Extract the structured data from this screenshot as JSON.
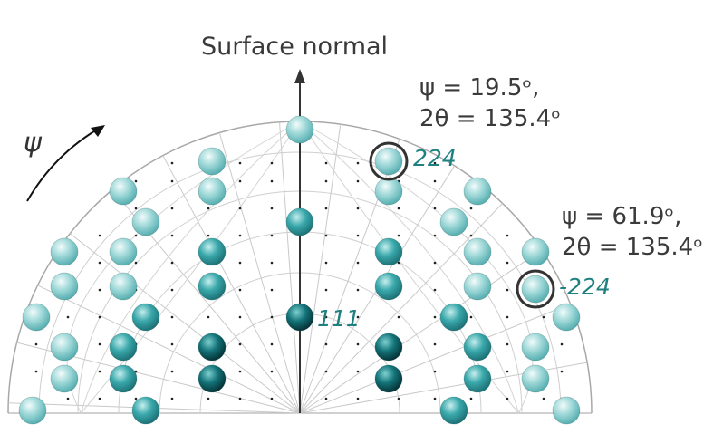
{
  "diagram": {
    "title": "Surface normal",
    "psi_symbol": "ψ",
    "annotations": [
      {
        "line1": "ψ = 19.5ᵒ,",
        "line2": "2θ = 135.4ᵒ"
      },
      {
        "line1": "ψ = 61.9ᵒ,",
        "line2": "2θ = 135.4ᵒ"
      }
    ],
    "reflection_labels": {
      "r224": "224",
      "rm224": "-224",
      "r111": "111"
    },
    "colors": {
      "sphere_light": "#8fd3d3",
      "sphere_mid": "#2fa3a6",
      "sphere_dark": "#0b4f55",
      "grid": "#c8c8c8",
      "circle_marker": "#333333",
      "label": "#1f8080"
    }
  }
}
